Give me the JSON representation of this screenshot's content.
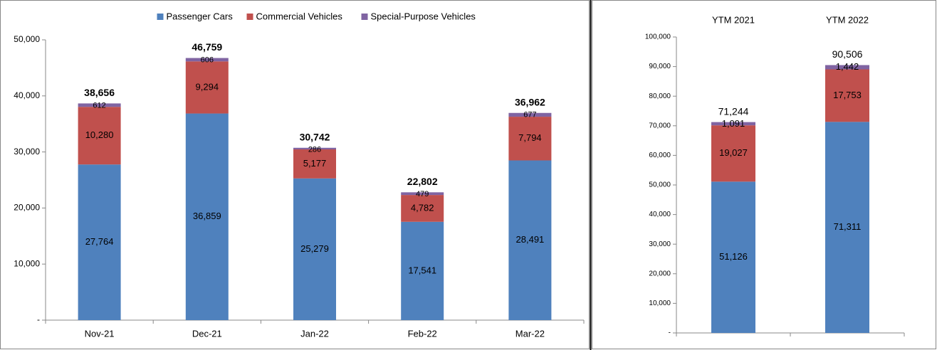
{
  "chart_data": [
    {
      "type": "stacked_bar",
      "legend": "top",
      "categories": [
        "Nov-21",
        "Dec-21",
        "Jan-22",
        "Feb-22",
        "Mar-22"
      ],
      "series": [
        {
          "name": "Passenger Cars",
          "color": "#4f81bd",
          "values": [
            27764,
            36859,
            25279,
            17541,
            28491
          ],
          "value_labels": [
            "27,764",
            "36,859",
            "25,279",
            "17,541",
            "28,491"
          ]
        },
        {
          "name": "Commercial Vehicles",
          "color": "#c0504d",
          "values": [
            10280,
            9294,
            5177,
            4782,
            7794
          ],
          "value_labels": [
            "10,280",
            "9,294",
            "5,177",
            "4,782",
            "7,794"
          ]
        },
        {
          "name": "Special-Purpose Vehicles",
          "color": "#8064a2",
          "values": [
            612,
            606,
            286,
            479,
            677
          ],
          "value_labels": [
            "612",
            "606",
            "286",
            "479",
            "677"
          ]
        }
      ],
      "totals": [
        38656,
        46759,
        30742,
        22802,
        36962
      ],
      "total_labels": [
        "38,656",
        "46,759",
        "30,742",
        "22,802",
        "36,962"
      ],
      "ylim": [
        0,
        50000
      ],
      "yticks": [
        {
          "value": 0,
          "label": "-"
        },
        {
          "value": 10000,
          "label": "10,000"
        },
        {
          "value": 20000,
          "label": "20,000"
        },
        {
          "value": 30000,
          "label": "30,000"
        },
        {
          "value": 40000,
          "label": "40,000"
        },
        {
          "value": 50000,
          "label": "50,000"
        }
      ]
    },
    {
      "type": "stacked_bar",
      "category_axis": "top",
      "categories": [
        "YTM 2021",
        "YTM 2022"
      ],
      "series": [
        {
          "color": "#4f81bd",
          "values": [
            51126,
            71311
          ],
          "value_labels": [
            "51,126",
            "71,311"
          ]
        },
        {
          "color": "#c0504d",
          "values": [
            19027,
            17753
          ],
          "value_labels": [
            "19,027",
            "17,753"
          ]
        },
        {
          "color": "#8064a2",
          "values": [
            1091,
            1442
          ],
          "value_labels": [
            "1,091",
            "1,442"
          ]
        }
      ],
      "totals": [
        71244,
        90506
      ],
      "total_labels": [
        "71,244",
        "90,506"
      ],
      "ylim": [
        0,
        100000
      ],
      "yticks": [
        {
          "value": 0,
          "label": "-"
        },
        {
          "value": 10000,
          "label": "10,000"
        },
        {
          "value": 20000,
          "label": "20,000"
        },
        {
          "value": 30000,
          "label": "30,000"
        },
        {
          "value": 40000,
          "label": "40,000"
        },
        {
          "value": 50000,
          "label": "50,000"
        },
        {
          "value": 60000,
          "label": "60,000"
        },
        {
          "value": 70000,
          "label": "70,000"
        },
        {
          "value": 80000,
          "label": "80,000"
        },
        {
          "value": 90000,
          "label": "90,000"
        },
        {
          "value": 100000,
          "label": "100,000"
        }
      ]
    }
  ]
}
